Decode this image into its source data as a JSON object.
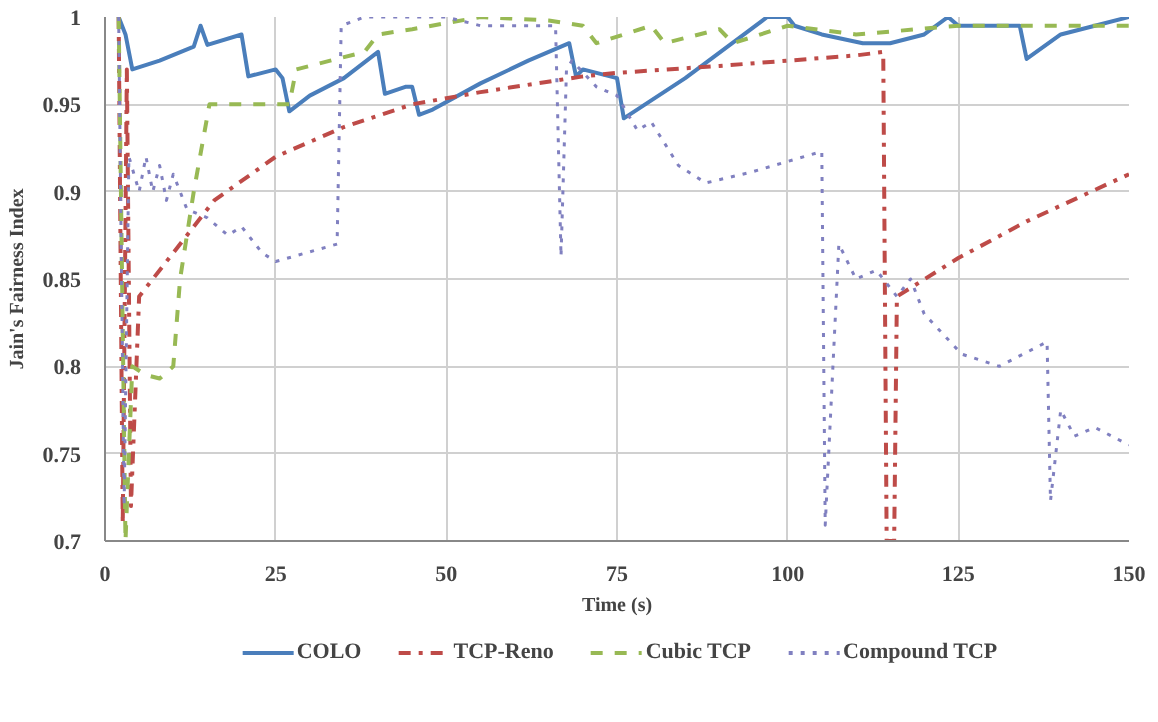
{
  "chart_data": {
    "type": "line",
    "xlabel": "Time (s)",
    "ylabel": "Jain's Fairness Index",
    "xlim": [
      0,
      150
    ],
    "ylim": [
      0.7,
      1
    ],
    "xticks": [
      0,
      25,
      50,
      75,
      100,
      125,
      150
    ],
    "yticks": [
      0.7,
      0.75,
      0.8,
      0.85,
      0.9,
      0.95,
      1
    ],
    "grid": true,
    "legend": "bottom",
    "marker": "none",
    "series": [
      {
        "name": "COLO",
        "color": "#4a7ebb",
        "line_style": "solid",
        "x": [
          2,
          3,
          4,
          8,
          13,
          14,
          15,
          20,
          21,
          25,
          26,
          27,
          30,
          35,
          40,
          41,
          44,
          45,
          46,
          48,
          55,
          62,
          68,
          69,
          70,
          75,
          76,
          85,
          93.6,
          97,
          100,
          101,
          105,
          111,
          115,
          120,
          123.5,
          125,
          130,
          134,
          135,
          140,
          145,
          150
        ],
        "values": [
          1,
          0.99,
          0.97,
          0.975,
          0.983,
          0.995,
          0.984,
          0.99,
          0.966,
          0.97,
          0.965,
          0.946,
          0.955,
          0.965,
          0.98,
          0.956,
          0.96,
          0.96,
          0.944,
          0.947,
          0.962,
          0.975,
          0.985,
          0.966,
          0.97,
          0.965,
          0.942,
          0.965,
          0.99,
          1,
          1,
          0.995,
          0.99,
          0.985,
          0.985,
          0.99,
          1,
          0.995,
          0.995,
          0.995,
          0.976,
          0.99,
          0.995,
          1
        ]
      },
      {
        "name": "TCP-Reno",
        "color": "#be4b48",
        "line_style": "dashdot",
        "x": [
          2,
          2.6,
          3.2,
          3.8,
          5,
          10,
          16,
          25,
          35,
          45,
          55,
          70,
          75,
          90,
          100,
          110,
          114,
          114.5,
          115.6,
          116,
          125,
          135,
          150
        ],
        "values": [
          1,
          0.71,
          0.97,
          0.72,
          0.84,
          0.865,
          0.895,
          0.92,
          0.937,
          0.95,
          0.957,
          0.966,
          0.968,
          0.972,
          0.975,
          0.978,
          0.98,
          0.7,
          0.7,
          0.84,
          0.862,
          0.883,
          0.91
        ]
      },
      {
        "name": "Cubic TCP",
        "color": "#98b954",
        "line_style": "dashed",
        "x": [
          2,
          3,
          4,
          6,
          8,
          10,
          11,
          13,
          15.3,
          20,
          27,
          28,
          33,
          38,
          40,
          45,
          55,
          65,
          70,
          72,
          80,
          82,
          90,
          92,
          100,
          110,
          125,
          135,
          150
        ],
        "values": [
          1,
          0.7,
          0.8,
          0.795,
          0.793,
          0.8,
          0.85,
          0.9,
          0.95,
          0.95,
          0.95,
          0.97,
          0.975,
          0.98,
          0.99,
          0.993,
          1,
          0.998,
          0.995,
          0.985,
          0.995,
          0.985,
          0.993,
          0.985,
          0.995,
          0.99,
          0.995,
          0.995,
          0.995
        ]
      },
      {
        "name": "Compound TCP",
        "color": "#8080c0",
        "line_style": "dotted",
        "x": [
          2,
          2.8,
          3.5,
          5,
          6,
          7,
          8,
          9,
          10,
          12,
          15,
          18,
          20,
          23,
          25,
          34,
          34.6,
          38,
          50,
          55,
          66,
          66.8,
          67.6,
          68.4,
          72,
          75,
          78,
          80,
          84,
          88,
          94.5,
          105,
          105.5,
          107.5,
          110,
          113,
          116,
          118,
          120,
          125.5,
          131,
          138,
          138.5,
          140,
          142,
          145,
          150
        ],
        "values": [
          1,
          0.72,
          0.92,
          0.9,
          0.92,
          0.9,
          0.915,
          0.895,
          0.91,
          0.89,
          0.885,
          0.875,
          0.88,
          0.865,
          0.86,
          0.87,
          0.995,
          1,
          1,
          0.995,
          0.995,
          0.863,
          0.97,
          0.975,
          0.96,
          0.955,
          0.935,
          0.94,
          0.915,
          0.905,
          0.911,
          0.923,
          0.709,
          0.87,
          0.85,
          0.855,
          0.84,
          0.85,
          0.83,
          0.807,
          0.8,
          0.814,
          0.723,
          0.775,
          0.76,
          0.765,
          0.755
        ]
      }
    ]
  }
}
